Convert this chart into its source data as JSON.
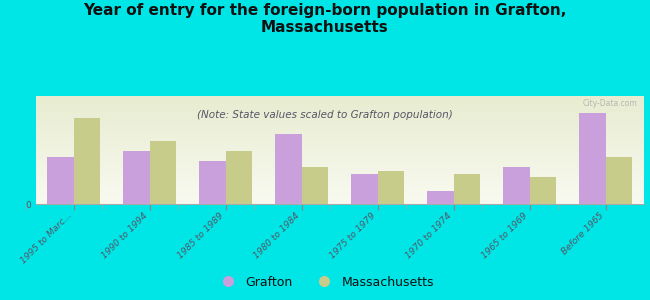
{
  "title": "Year of entry for the foreign-born population in Grafton,\nMassachusetts",
  "subtitle": "(Note: State values scaled to Grafton population)",
  "categories": [
    "1995 to Marc...",
    "1990 to 1994",
    "1985 to 1989",
    "1980 to 1984",
    "1975 to 1979",
    "1970 to 1974",
    "1965 to 1969",
    "Before 1965"
  ],
  "grafton_values": [
    28,
    32,
    26,
    42,
    18,
    8,
    22,
    55
  ],
  "massachusetts_values": [
    52,
    38,
    32,
    22,
    20,
    18,
    16,
    28
  ],
  "grafton_color": "#c9a0dc",
  "massachusetts_color": "#c8cc8a",
  "background_color": "#00e5e5",
  "plot_bg_color1": "#e8ecd0",
  "plot_bg_color2": "#f8faf0",
  "watermark": "City-Data.com",
  "bar_width": 0.35,
  "ylim": [
    0,
    65
  ],
  "title_fontsize": 11,
  "subtitle_fontsize": 7.5,
  "tick_fontsize": 6.5,
  "legend_fontsize": 9
}
